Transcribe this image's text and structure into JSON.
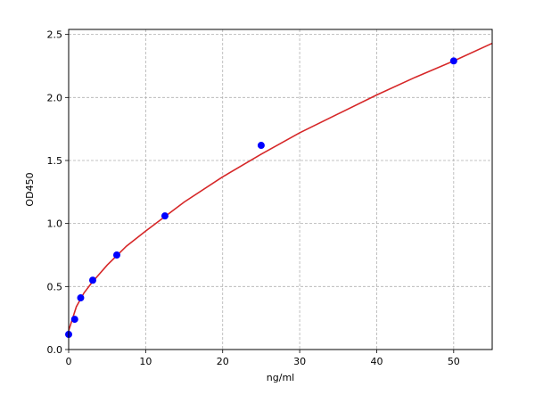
{
  "chart_data": {
    "type": "scatter",
    "x_label": "ng/ml",
    "y_label": "OD450",
    "xlim": [
      0,
      55
    ],
    "ylim": [
      0,
      2.54
    ],
    "xticks": [
      0,
      10,
      20,
      30,
      40,
      50
    ],
    "yticks": [
      {
        "value": 0,
        "label": "0.0"
      },
      0.5,
      {
        "value": 1,
        "label": "1.0"
      },
      1.5,
      {
        "value": 2,
        "label": "2.0"
      },
      2.5
    ],
    "grid": true,
    "series": [
      {
        "type": "scatter",
        "color": "#0000ff",
        "x": [
          0,
          0.78,
          1.56,
          3.125,
          6.25,
          12.5,
          25,
          50
        ],
        "values": [
          0.12,
          0.24,
          0.41,
          0.55,
          0.75,
          1.06,
          1.62,
          2.29
        ]
      },
      {
        "type": "line",
        "color": "#d62728",
        "x": [
          0,
          1,
          2,
          3,
          5,
          7.5,
          10,
          15,
          20,
          25,
          30,
          35,
          40,
          45,
          50,
          55
        ],
        "values": [
          0.15,
          0.34,
          0.45,
          0.53,
          0.67,
          0.82,
          0.94,
          1.17,
          1.37,
          1.55,
          1.72,
          1.87,
          2.02,
          2.16,
          2.29,
          2.43
        ]
      }
    ]
  }
}
